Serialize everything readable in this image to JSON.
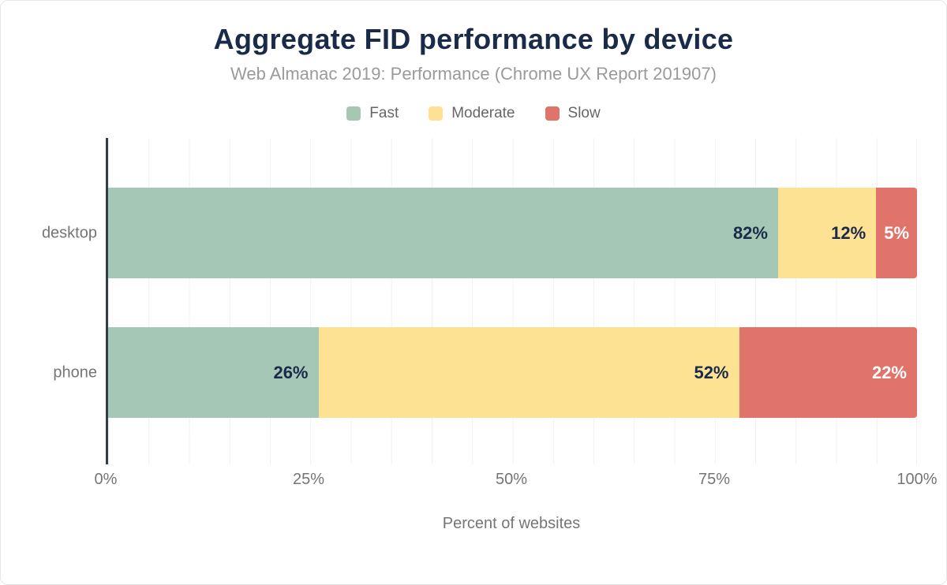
{
  "chart_data": {
    "type": "bar",
    "orientation": "horizontal",
    "stacked": true,
    "title": "Aggregate FID performance by device",
    "subtitle": "Web Almanac 2019: Performance (Chrome UX Report 201907)",
    "xlabel": "Percent of websites",
    "categories": [
      "desktop",
      "phone"
    ],
    "series": [
      {
        "name": "Fast",
        "color": "#a5c8b6",
        "label_color": "#1a2b49",
        "values": [
          82,
          26
        ]
      },
      {
        "name": "Moderate",
        "color": "#fde293",
        "label_color": "#1a2b49",
        "values": [
          12,
          52
        ]
      },
      {
        "name": "Slow",
        "color": "#e0736a",
        "label_color": "#ffffff",
        "values": [
          5,
          22
        ]
      }
    ],
    "value_suffix": "%",
    "xlim": [
      0,
      100
    ],
    "x_ticks": [
      "0%",
      "25%",
      "50%",
      "75%",
      "100%"
    ],
    "grid": "vertical, every 5%",
    "legend_position": "top"
  },
  "colors": {
    "title_text": "#1a2b49",
    "subtitle_text": "#9a9a9a",
    "axis_text": "#757575",
    "legend_text": "#666666",
    "gridline": "#f1f1f1",
    "axis_line": "#363c47",
    "background": "#ffffff"
  }
}
